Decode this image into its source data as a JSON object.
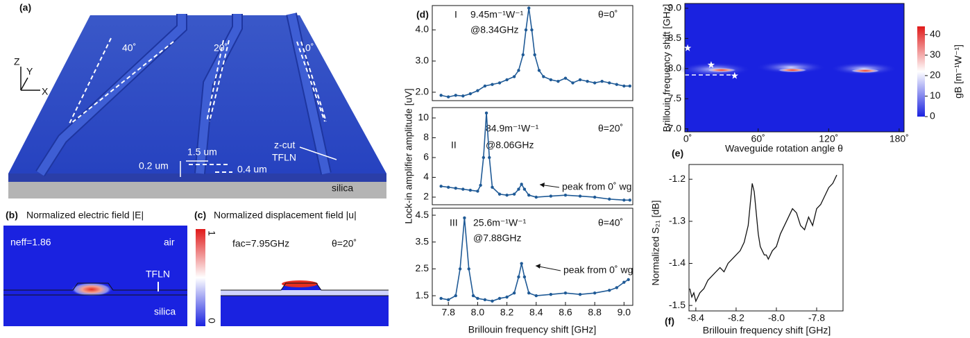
{
  "figure": {
    "a": {
      "label": "(a)",
      "angles": [
        "40˚",
        "20˚",
        "0˚"
      ],
      "axes": [
        "Z",
        "Y",
        "X"
      ],
      "material": [
        "z-cut",
        "TFLN"
      ],
      "dims": [
        "1.5 um",
        "0.2 um",
        "0.4 um"
      ],
      "substrate": "silica"
    },
    "b": {
      "label": "(b)",
      "title": "Normalized electric field |E|",
      "neff": "neff=1.86",
      "regions": [
        "air",
        "TFLN",
        "silica"
      ]
    },
    "c": {
      "label": "(c)",
      "title": "Normalized displacement field |u|",
      "freq": "fac=7.95GHz",
      "angle": "θ=20˚",
      "colorbar": [
        "1",
        "0"
      ]
    }
  },
  "chart_data": [
    {
      "type": "line",
      "panel": "(d)",
      "color": "#1f5a96",
      "annotations": [
        "I",
        "9.45m⁻¹W⁻¹",
        "@8.34GHz",
        "θ=0˚"
      ],
      "xlim": [
        7.69,
        9.06
      ],
      "ylim": [
        1.73,
        4.78
      ],
      "yticks": [
        {
          "value": 2,
          "label": "2.0"
        },
        {
          "value": 3,
          "label": "3.0"
        },
        {
          "value": 4,
          "label": "4.0"
        }
      ],
      "x": [
        7.75,
        7.8,
        7.85,
        7.9,
        7.95,
        8.0,
        8.05,
        8.1,
        8.15,
        8.2,
        8.25,
        8.28,
        8.31,
        8.33,
        8.35,
        8.37,
        8.39,
        8.42,
        8.45,
        8.5,
        8.55,
        8.6,
        8.65,
        8.7,
        8.75,
        8.8,
        8.85,
        8.9,
        8.95,
        9.0,
        9.04
      ],
      "values": [
        1.9,
        1.85,
        1.9,
        1.88,
        1.95,
        2.05,
        2.2,
        2.25,
        2.3,
        2.4,
        2.5,
        2.7,
        3.2,
        4.0,
        4.7,
        4.0,
        3.2,
        2.7,
        2.5,
        2.4,
        2.35,
        2.45,
        2.3,
        2.4,
        2.35,
        2.3,
        2.35,
        2.3,
        2.25,
        2.2,
        2.2
      ]
    },
    {
      "type": "line",
      "color": "#1f5a96",
      "y_label": "Lock-in amplifier amplitude [uV]",
      "annotations": [
        "II",
        "84.9m⁻¹W⁻¹",
        "@8.06GHz",
        "θ=20˚",
        "peak from 0˚ wg"
      ],
      "xlim": [
        7.69,
        9.06
      ],
      "ylim": [
        1.23,
        11.05
      ],
      "yticks": [
        2,
        4,
        6,
        8,
        10
      ],
      "x": [
        7.75,
        7.8,
        7.85,
        7.9,
        7.95,
        8.0,
        8.02,
        8.04,
        8.06,
        8.08,
        8.1,
        8.15,
        8.2,
        8.25,
        8.28,
        8.3,
        8.32,
        8.35,
        8.4,
        8.5,
        8.6,
        8.7,
        8.8,
        8.9,
        9.0,
        9.04
      ],
      "values": [
        3.1,
        3.0,
        2.9,
        2.8,
        2.7,
        2.6,
        3.2,
        6.0,
        10.5,
        6.0,
        3.0,
        2.3,
        2.2,
        2.3,
        2.8,
        3.3,
        2.8,
        2.2,
        2.0,
        2.1,
        2.2,
        2.1,
        2.0,
        1.8,
        1.7,
        1.7
      ]
    },
    {
      "type": "line",
      "color": "#1f5a96",
      "x_label": "Brillouin frequency shift [GHz]",
      "annotations": [
        "III",
        "25.6m⁻¹W⁻¹",
        "@7.88GHz",
        "θ=40˚",
        "peak from 0˚ wg"
      ],
      "xlim": [
        7.69,
        9.06
      ],
      "ylim": [
        1.14,
        4.76
      ],
      "xticks": [
        7.8,
        {
          "value": 8,
          "label": "8.0"
        },
        8.2,
        8.4,
        8.6,
        8.8,
        {
          "value": 9,
          "label": "9.0"
        }
      ],
      "yticks": [
        1.5,
        2.5,
        3.5,
        4.5
      ],
      "x": [
        7.75,
        7.8,
        7.85,
        7.88,
        7.91,
        7.94,
        7.97,
        8.0,
        8.05,
        8.1,
        8.15,
        8.2,
        8.25,
        8.28,
        8.3,
        8.32,
        8.35,
        8.4,
        8.5,
        8.6,
        8.7,
        8.8,
        8.9,
        8.95,
        9.0,
        9.03
      ],
      "values": [
        1.4,
        1.35,
        1.5,
        2.5,
        4.4,
        2.5,
        1.5,
        1.4,
        1.35,
        1.3,
        1.4,
        1.45,
        1.6,
        2.2,
        2.7,
        2.2,
        1.6,
        1.5,
        1.55,
        1.6,
        1.55,
        1.6,
        1.7,
        1.8,
        2.0,
        2.1
      ]
    },
    {
      "type": "heatmap",
      "panel": "(e)",
      "x_label": "Waveguide rotation angle θ",
      "y_label": "Brillouin frequency shift [GHz]",
      "xlim": [
        -2.4,
        184.2
      ],
      "ylim": [
        6.95,
        9.08
      ],
      "xticks": [
        {
          "value": 0,
          "label": "0˚"
        },
        {
          "value": 60,
          "label": "60˚"
        },
        {
          "value": 120,
          "label": "120˚"
        },
        {
          "value": 180,
          "label": "180˚"
        }
      ],
      "yticks": [
        {
          "value": 7,
          "label": "7.0"
        },
        7.5,
        {
          "value": 8,
          "label": "8.0"
        },
        8.5,
        {
          "value": 9,
          "label": "9.0"
        }
      ],
      "points": {
        "x": [
          0,
          20,
          40
        ],
        "y": [
          8.34,
          8.06,
          7.88
        ]
      },
      "colorbar": {
        "label": "gB [m⁻¹W⁻¹]",
        "lim": [
          0,
          44
        ],
        "ticks": [
          0,
          10,
          20,
          30,
          40
        ]
      }
    },
    {
      "type": "line",
      "panel": "(f)",
      "color": "#111111",
      "x_label": "Brillouin frequency shift [GHz]",
      "y_label": "Normalized S₂₁ [dB]",
      "xlim": [
        -8.434,
        -7.669
      ],
      "ylim": [
        -1.513,
        -1.165
      ],
      "xticks": [
        -8.4,
        -8.2,
        {
          "value": -8,
          "label": "-8.0"
        },
        -7.8
      ],
      "yticks": [
        -1.2,
        -1.3,
        -1.4,
        -1.5
      ],
      "x": [
        -8.43,
        -8.42,
        -8.41,
        -8.4,
        -8.38,
        -8.36,
        -8.34,
        -8.32,
        -8.3,
        -8.28,
        -8.26,
        -8.24,
        -8.22,
        -8.2,
        -8.18,
        -8.16,
        -8.14,
        -8.13,
        -8.12,
        -8.11,
        -8.1,
        -8.09,
        -8.08,
        -8.07,
        -8.06,
        -8.05,
        -8.04,
        -8.02,
        -8.0,
        -7.98,
        -7.96,
        -7.94,
        -7.92,
        -7.9,
        -7.88,
        -7.86,
        -7.84,
        -7.82,
        -7.8,
        -7.78,
        -7.76,
        -7.74,
        -7.72,
        -7.7
      ],
      "values": [
        -1.46,
        -1.48,
        -1.47,
        -1.49,
        -1.47,
        -1.46,
        -1.44,
        -1.43,
        -1.42,
        -1.41,
        -1.42,
        -1.4,
        -1.39,
        -1.38,
        -1.37,
        -1.35,
        -1.31,
        -1.26,
        -1.21,
        -1.23,
        -1.28,
        -1.33,
        -1.36,
        -1.37,
        -1.38,
        -1.38,
        -1.39,
        -1.37,
        -1.36,
        -1.33,
        -1.31,
        -1.29,
        -1.27,
        -1.28,
        -1.31,
        -1.32,
        -1.29,
        -1.31,
        -1.27,
        -1.26,
        -1.24,
        -1.22,
        -1.21,
        -1.19
      ]
    }
  ]
}
